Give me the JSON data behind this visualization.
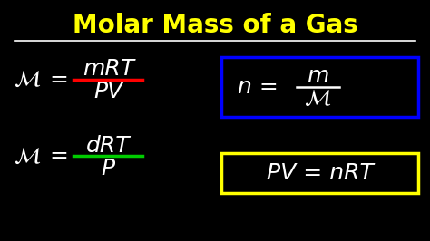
{
  "bg_color": "#000000",
  "title": "Molar Mass of a Gas",
  "title_color": "#FFFF00",
  "title_underline_color": "#FFFFFF",
  "formula1_mu": "$\\mathcal{M}$",
  "formula1_eq": "=",
  "formula1_num": "mRT",
  "formula1_denom": "PV",
  "formula1_bar_color": "#FF0000",
  "formula2_mu": "$\\mathcal{M}$",
  "formula2_eq": "=",
  "formula2_num": "dRT",
  "formula2_denom": "P",
  "formula2_bar_color": "#00CC00",
  "box1_text_left": "n =",
  "box1_frac_num": "m",
  "box1_frac_denom": "$\\mathcal{M}$",
  "box1_color": "#0000FF",
  "box2_text": "PV = nRT",
  "box2_color": "#FFFF00",
  "handwriting_color": "#FFFFFF"
}
